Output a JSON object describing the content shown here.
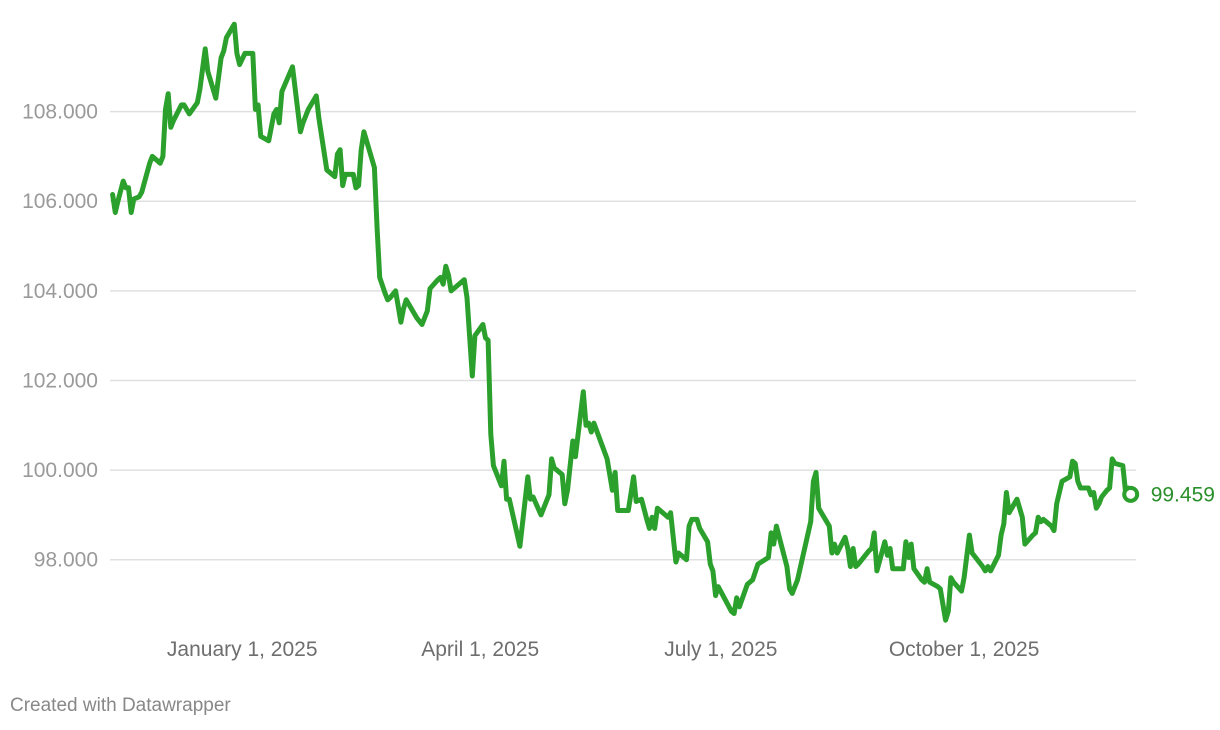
{
  "chart_data": {
    "type": "line",
    "title": "",
    "xlabel": "",
    "ylabel": "",
    "x_range": [
      "2024-11-12",
      "2025-12-05"
    ],
    "ylim": [
      96.7,
      110.0
    ],
    "y_ticks": [
      {
        "value": 98,
        "label": "98.000"
      },
      {
        "value": 100,
        "label": "100.000"
      },
      {
        "value": 102,
        "label": "102.000"
      },
      {
        "value": 104,
        "label": "104.000"
      },
      {
        "value": 106,
        "label": "106.000"
      },
      {
        "value": 108,
        "label": "108.000"
      }
    ],
    "x_ticks": [
      {
        "value": "2025-01-01",
        "label": "January 1, 2025"
      },
      {
        "value": "2025-04-01",
        "label": "April 1, 2025"
      },
      {
        "value": "2025-07-01",
        "label": "July 1, 2025"
      },
      {
        "value": "2025-10-01",
        "label": "October 1, 2025"
      }
    ],
    "grid": true,
    "legend": "none",
    "series": [
      {
        "color": "#2ca02c",
        "points": [
          [
            "2024-11-13",
            106.15
          ],
          [
            "2024-11-14",
            105.75
          ],
          [
            "2024-11-15",
            106.0
          ],
          [
            "2024-11-17",
            106.45
          ],
          [
            "2024-11-18",
            106.3
          ],
          [
            "2024-11-19",
            106.3
          ],
          [
            "2024-11-20",
            105.75
          ],
          [
            "2024-11-21",
            106.05
          ],
          [
            "2024-11-23",
            106.1
          ],
          [
            "2024-11-24",
            106.2
          ],
          [
            "2024-11-27",
            106.85
          ],
          [
            "2024-11-28",
            107.0
          ],
          [
            "2024-12-01",
            106.85
          ],
          [
            "2024-12-02",
            107.0
          ],
          [
            "2024-12-03",
            108.05
          ],
          [
            "2024-12-04",
            108.4
          ],
          [
            "2024-12-05",
            107.65
          ],
          [
            "2024-12-06",
            107.8
          ],
          [
            "2024-12-09",
            108.15
          ],
          [
            "2024-12-10",
            108.15
          ],
          [
            "2024-12-12",
            107.95
          ],
          [
            "2024-12-15",
            108.2
          ],
          [
            "2024-12-16",
            108.5
          ],
          [
            "2024-12-18",
            109.4
          ],
          [
            "2024-12-19",
            108.9
          ],
          [
            "2024-12-22",
            108.3
          ],
          [
            "2024-12-24",
            109.2
          ],
          [
            "2024-12-25",
            109.35
          ],
          [
            "2024-12-26",
            109.65
          ],
          [
            "2024-12-29",
            109.95
          ],
          [
            "2024-12-30",
            109.3
          ],
          [
            "2024-12-31",
            109.05
          ],
          [
            "2025-01-02",
            109.3
          ],
          [
            "2025-01-05",
            109.3
          ],
          [
            "2025-01-06",
            108.05
          ],
          [
            "2025-01-07",
            108.15
          ],
          [
            "2025-01-08",
            107.45
          ],
          [
            "2025-01-11",
            107.35
          ],
          [
            "2025-01-13",
            107.95
          ],
          [
            "2025-01-14",
            108.05
          ],
          [
            "2025-01-15",
            107.75
          ],
          [
            "2025-01-16",
            108.45
          ],
          [
            "2025-01-20",
            109.0
          ],
          [
            "2025-01-23",
            107.55
          ],
          [
            "2025-01-24",
            107.75
          ],
          [
            "2025-01-26",
            108.05
          ],
          [
            "2025-01-29",
            108.35
          ],
          [
            "2025-01-30",
            107.85
          ],
          [
            "2025-02-02",
            106.7
          ],
          [
            "2025-02-05",
            106.55
          ],
          [
            "2025-02-06",
            107.05
          ],
          [
            "2025-02-07",
            107.15
          ],
          [
            "2025-02-08",
            106.35
          ],
          [
            "2025-02-09",
            106.6
          ],
          [
            "2025-02-12",
            106.6
          ],
          [
            "2025-02-13",
            106.3
          ],
          [
            "2025-02-14",
            106.35
          ],
          [
            "2025-02-15",
            107.15
          ],
          [
            "2025-02-16",
            107.55
          ],
          [
            "2025-02-20",
            106.75
          ],
          [
            "2025-02-21",
            105.4
          ],
          [
            "2025-02-22",
            104.3
          ],
          [
            "2025-02-24",
            103.95
          ],
          [
            "2025-02-25",
            103.8
          ],
          [
            "2025-02-26",
            103.85
          ],
          [
            "2025-02-28",
            104.0
          ],
          [
            "2025-03-02",
            103.3
          ],
          [
            "2025-03-03",
            103.6
          ],
          [
            "2025-03-04",
            103.8
          ],
          [
            "2025-03-08",
            103.4
          ],
          [
            "2025-03-10",
            103.25
          ],
          [
            "2025-03-12",
            103.55
          ],
          [
            "2025-03-13",
            104.05
          ],
          [
            "2025-03-16",
            104.25
          ],
          [
            "2025-03-17",
            104.3
          ],
          [
            "2025-03-18",
            104.15
          ],
          [
            "2025-03-19",
            104.55
          ],
          [
            "2025-03-20",
            104.35
          ],
          [
            "2025-03-21",
            104.0
          ],
          [
            "2025-03-23",
            104.1
          ],
          [
            "2025-03-26",
            104.25
          ],
          [
            "2025-03-27",
            103.85
          ],
          [
            "2025-03-29",
            102.1
          ],
          [
            "2025-03-30",
            103.0
          ],
          [
            "2025-04-02",
            103.25
          ],
          [
            "2025-04-03",
            102.95
          ],
          [
            "2025-04-04",
            102.9
          ],
          [
            "2025-04-05",
            100.8
          ],
          [
            "2025-04-06",
            100.1
          ],
          [
            "2025-04-09",
            99.65
          ],
          [
            "2025-04-10",
            100.2
          ],
          [
            "2025-04-11",
            99.35
          ],
          [
            "2025-04-12",
            99.35
          ],
          [
            "2025-04-16",
            98.3
          ],
          [
            "2025-04-19",
            99.85
          ],
          [
            "2025-04-20",
            99.35
          ],
          [
            "2025-04-21",
            99.4
          ],
          [
            "2025-04-24",
            99.0
          ],
          [
            "2025-04-27",
            99.45
          ],
          [
            "2025-04-28",
            100.25
          ],
          [
            "2025-04-29",
            100.05
          ],
          [
            "2025-05-02",
            99.9
          ],
          [
            "2025-05-03",
            99.25
          ],
          [
            "2025-05-04",
            99.55
          ],
          [
            "2025-05-06",
            100.65
          ],
          [
            "2025-05-07",
            100.3
          ],
          [
            "2025-05-10",
            101.75
          ],
          [
            "2025-05-11",
            101.0
          ],
          [
            "2025-05-12",
            101.05
          ],
          [
            "2025-05-13",
            100.85
          ],
          [
            "2025-05-14",
            101.05
          ],
          [
            "2025-05-19",
            100.25
          ],
          [
            "2025-05-21",
            99.55
          ],
          [
            "2025-05-22",
            99.95
          ],
          [
            "2025-05-23",
            99.1
          ],
          [
            "2025-05-27",
            99.1
          ],
          [
            "2025-05-29",
            99.85
          ],
          [
            "2025-05-30",
            99.3
          ],
          [
            "2025-06-01",
            99.35
          ],
          [
            "2025-06-03",
            98.9
          ],
          [
            "2025-06-04",
            98.7
          ],
          [
            "2025-06-05",
            98.95
          ],
          [
            "2025-06-06",
            98.7
          ],
          [
            "2025-06-07",
            99.15
          ],
          [
            "2025-06-09",
            99.05
          ],
          [
            "2025-06-10",
            99.0
          ],
          [
            "2025-06-11",
            98.95
          ],
          [
            "2025-06-12",
            99.05
          ],
          [
            "2025-06-14",
            97.95
          ],
          [
            "2025-06-15",
            98.15
          ],
          [
            "2025-06-18",
            98.0
          ],
          [
            "2025-06-19",
            98.75
          ],
          [
            "2025-06-20",
            98.9
          ],
          [
            "2025-06-22",
            98.9
          ],
          [
            "2025-06-23",
            98.7
          ],
          [
            "2025-06-26",
            98.4
          ],
          [
            "2025-06-27",
            97.9
          ],
          [
            "2025-06-28",
            97.75
          ],
          [
            "2025-06-29",
            97.2
          ],
          [
            "2025-06-30",
            97.4
          ],
          [
            "2025-07-05",
            96.85
          ],
          [
            "2025-07-06",
            96.8
          ],
          [
            "2025-07-07",
            97.15
          ],
          [
            "2025-07-08",
            96.95
          ],
          [
            "2025-07-11",
            97.45
          ],
          [
            "2025-07-13",
            97.55
          ],
          [
            "2025-07-15",
            97.9
          ],
          [
            "2025-07-19",
            98.05
          ],
          [
            "2025-07-20",
            98.6
          ],
          [
            "2025-07-21",
            98.35
          ],
          [
            "2025-07-22",
            98.75
          ],
          [
            "2025-07-26",
            97.85
          ],
          [
            "2025-07-27",
            97.35
          ],
          [
            "2025-07-28",
            97.25
          ],
          [
            "2025-07-30",
            97.55
          ],
          [
            "2025-08-04",
            98.85
          ],
          [
            "2025-08-05",
            99.75
          ],
          [
            "2025-08-06",
            99.95
          ],
          [
            "2025-08-07",
            99.15
          ],
          [
            "2025-08-11",
            98.75
          ],
          [
            "2025-08-12",
            98.15
          ],
          [
            "2025-08-13",
            98.35
          ],
          [
            "2025-08-14",
            98.15
          ],
          [
            "2025-08-17",
            98.5
          ],
          [
            "2025-08-18",
            98.25
          ],
          [
            "2025-08-19",
            97.85
          ],
          [
            "2025-08-20",
            98.25
          ],
          [
            "2025-08-21",
            97.85
          ],
          [
            "2025-08-22",
            97.9
          ],
          [
            "2025-08-26",
            98.2
          ],
          [
            "2025-08-27",
            98.25
          ],
          [
            "2025-08-28",
            98.6
          ],
          [
            "2025-08-29",
            97.75
          ],
          [
            "2025-09-01",
            98.4
          ],
          [
            "2025-09-02",
            98.1
          ],
          [
            "2025-09-03",
            98.25
          ],
          [
            "2025-09-04",
            97.8
          ],
          [
            "2025-09-08",
            97.8
          ],
          [
            "2025-09-09",
            98.4
          ],
          [
            "2025-09-10",
            98.05
          ],
          [
            "2025-09-11",
            98.35
          ],
          [
            "2025-09-12",
            97.8
          ],
          [
            "2025-09-15",
            97.55
          ],
          [
            "2025-09-16",
            97.5
          ],
          [
            "2025-09-17",
            97.8
          ],
          [
            "2025-09-18",
            97.5
          ],
          [
            "2025-09-21",
            97.4
          ],
          [
            "2025-09-22",
            97.35
          ],
          [
            "2025-09-24",
            96.65
          ],
          [
            "2025-09-25",
            96.85
          ],
          [
            "2025-09-26",
            97.6
          ],
          [
            "2025-09-27",
            97.5
          ],
          [
            "2025-09-30",
            97.3
          ],
          [
            "2025-10-01",
            97.6
          ],
          [
            "2025-10-03",
            98.55
          ],
          [
            "2025-10-04",
            98.15
          ],
          [
            "2025-10-08",
            97.85
          ],
          [
            "2025-10-09",
            97.75
          ],
          [
            "2025-10-10",
            97.85
          ],
          [
            "2025-10-11",
            97.75
          ],
          [
            "2025-10-14",
            98.1
          ],
          [
            "2025-10-15",
            98.55
          ],
          [
            "2025-10-16",
            98.8
          ],
          [
            "2025-10-17",
            99.5
          ],
          [
            "2025-10-18",
            99.05
          ],
          [
            "2025-10-21",
            99.35
          ],
          [
            "2025-10-23",
            98.95
          ],
          [
            "2025-10-24",
            98.35
          ],
          [
            "2025-10-27",
            98.55
          ],
          [
            "2025-10-28",
            98.6
          ],
          [
            "2025-10-29",
            98.95
          ],
          [
            "2025-10-30",
            98.85
          ],
          [
            "2025-10-31",
            98.9
          ],
          [
            "2025-11-03",
            98.75
          ],
          [
            "2025-11-04",
            98.65
          ],
          [
            "2025-11-05",
            99.25
          ],
          [
            "2025-11-07",
            99.75
          ],
          [
            "2025-11-10",
            99.85
          ],
          [
            "2025-11-11",
            100.2
          ],
          [
            "2025-11-12",
            100.15
          ],
          [
            "2025-11-13",
            99.75
          ],
          [
            "2025-11-14",
            99.6
          ],
          [
            "2025-11-17",
            99.6
          ],
          [
            "2025-11-18",
            99.45
          ],
          [
            "2025-11-19",
            99.5
          ],
          [
            "2025-11-20",
            99.15
          ],
          [
            "2025-11-21",
            99.25
          ],
          [
            "2025-11-22",
            99.4
          ],
          [
            "2025-11-24",
            99.55
          ],
          [
            "2025-11-25",
            99.6
          ],
          [
            "2025-11-26",
            100.25
          ],
          [
            "2025-11-27",
            100.15
          ],
          [
            "2025-11-30",
            100.1
          ],
          [
            "2025-12-01",
            99.55
          ],
          [
            "2025-12-02",
            99.6
          ],
          [
            "2025-12-03",
            99.459
          ]
        ]
      }
    ],
    "end_label": "99.459"
  },
  "footer": {
    "credit": "Created with Datawrapper"
  },
  "colors": {
    "series": "#2ca02c",
    "end_label": "#2a8f2a",
    "grid": "#e0e0e0",
    "y_tick": "#9a9a9a",
    "x_tick": "#6e6e6e",
    "credit": "#888888"
  }
}
